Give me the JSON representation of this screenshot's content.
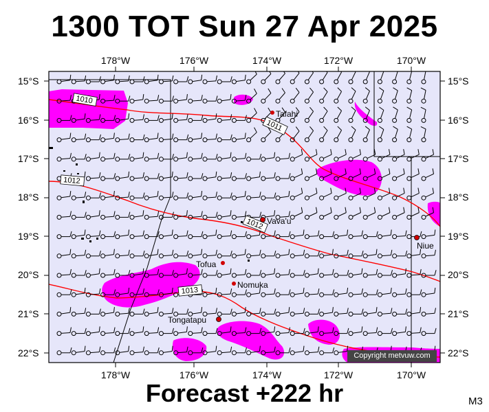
{
  "title": "1300 TOT Sun 27 Apr 2025",
  "footer": "Forecast +222 hr",
  "model_code": "M3",
  "copyright": "Copyright metvuw.com",
  "lon_ticks": [
    "178°W",
    "176°W",
    "174°W",
    "172°W",
    "170°W"
  ],
  "lat_ticks": [
    "15°S",
    "16°S",
    "17°S",
    "18°S",
    "19°S",
    "20°S",
    "21°S",
    "22°S"
  ],
  "places": [
    {
      "name": "Tafahi",
      "lon": -173.72,
      "lat": -15.85
    },
    {
      "name": "Vava'u",
      "lon": -174.0,
      "lat": -18.65
    },
    {
      "name": "Niue",
      "lon": -169.85,
      "lat": -19.05
    },
    {
      "name": "Tofua",
      "lon": -175.07,
      "lat": -19.75
    },
    {
      "name": "Nomuka",
      "lon": -174.8,
      "lat": -20.25
    },
    {
      "name": "Tongatapu",
      "lon": -175.2,
      "lat": -21.15
    }
  ],
  "isobar_labels": [
    "1010",
    "1011",
    "1012",
    "1012",
    "1013"
  ],
  "colors": {
    "ocean": "#e6e6fa",
    "rain": "#ff00ff",
    "isobar": "#ff0000",
    "land": "#000000"
  }
}
